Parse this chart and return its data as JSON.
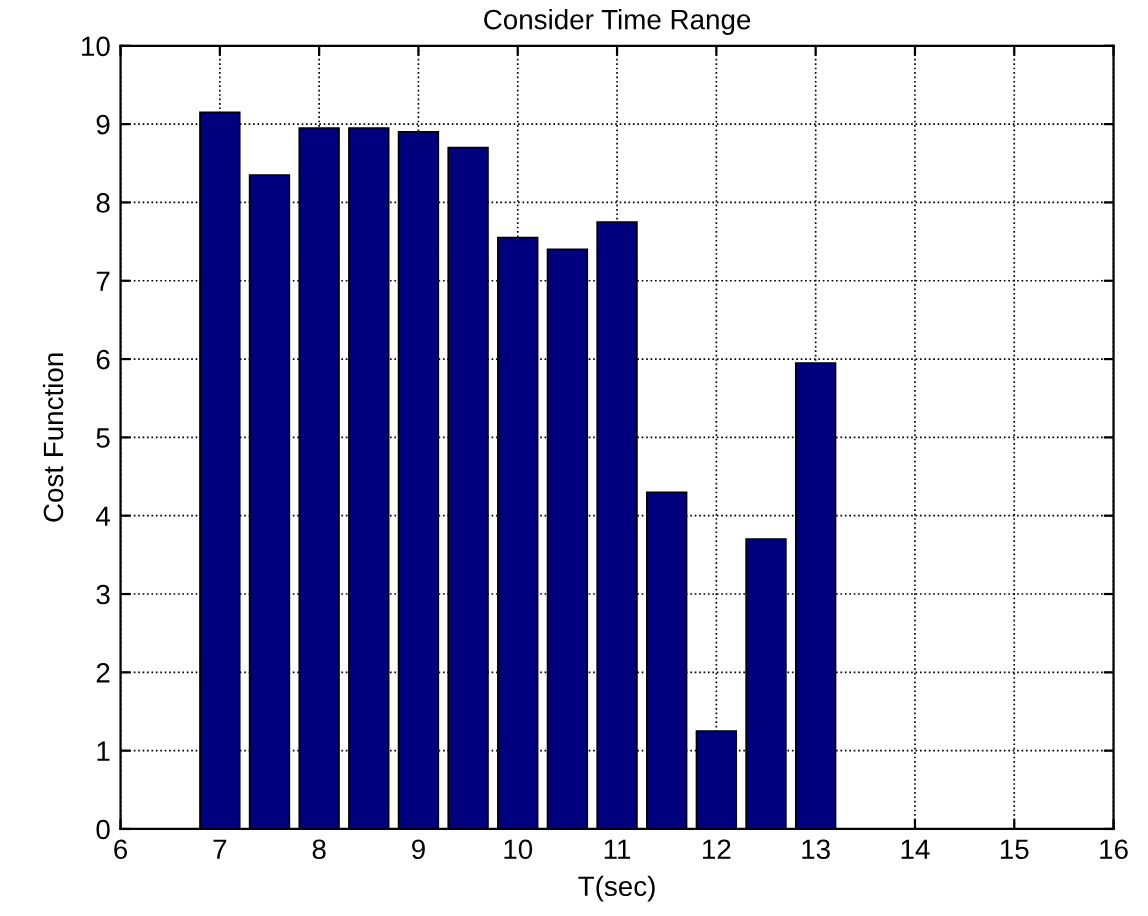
{
  "chart_data": {
    "type": "bar",
    "title": "Consider Time Range",
    "xlabel": "T(sec)",
    "ylabel": "Cost Function",
    "x": [
      7,
      7.5,
      8,
      8.5,
      9,
      9.5,
      10,
      10.5,
      11,
      11.5,
      12,
      12.5,
      13
    ],
    "values": [
      9.15,
      8.35,
      8.95,
      8.95,
      8.9,
      8.7,
      7.55,
      7.4,
      7.75,
      4.3,
      1.25,
      3.7,
      5.95
    ],
    "color": "#00007f",
    "xlim": [
      6,
      16
    ],
    "xticks": [
      6,
      7,
      8,
      9,
      10,
      11,
      12,
      13,
      14,
      15,
      16
    ],
    "ylim": [
      0,
      10
    ],
    "yticks": [
      0,
      1,
      2,
      3,
      4,
      5,
      6,
      7,
      8,
      9,
      10
    ],
    "grid": true,
    "line_style": "dotted"
  }
}
